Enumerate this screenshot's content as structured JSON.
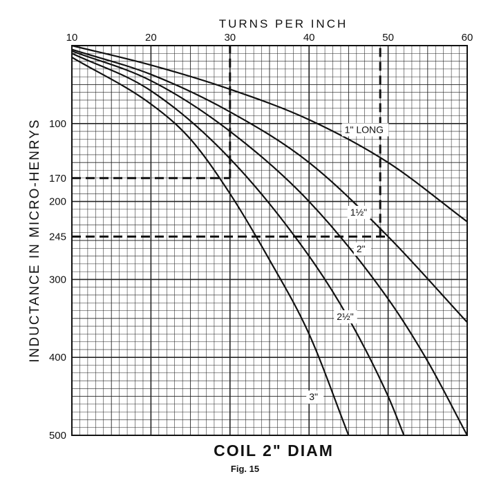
{
  "caption": "Fig. 15",
  "chart_data": {
    "type": "line",
    "title": "COIL 2\" DIAM",
    "xlabel": "TURNS  PER INCH",
    "ylabel": "INDUCTANCE  IN  MICRO-HENRYS",
    "xlim": [
      10,
      60
    ],
    "ylim": [
      0,
      500
    ],
    "y_inverted": true,
    "x_axis_position": "top",
    "grid": true,
    "x_ticks": [
      10,
      20,
      30,
      40,
      50,
      60
    ],
    "y_ticks": [
      100,
      200,
      300,
      400,
      500
    ],
    "y_marked_values": [
      170,
      245
    ],
    "series": [
      {
        "name": "1\" LONG",
        "x": [
          10,
          20,
          30,
          40,
          50,
          60
        ],
        "y": [
          0,
          25,
          56,
          95,
          150,
          226
        ]
      },
      {
        "name": "1½\"",
        "x": [
          10,
          20,
          30,
          40,
          50,
          60
        ],
        "y": [
          5,
          37,
          85,
          150,
          245,
          355
        ]
      },
      {
        "name": "2\"",
        "x": [
          10,
          20,
          30,
          40,
          50,
          55,
          60
        ],
        "y": [
          7,
          45,
          110,
          200,
          325,
          405,
          500
        ]
      },
      {
        "name": "2½\"",
        "x": [
          10,
          20,
          30,
          40,
          45,
          50,
          52
        ],
        "y": [
          10,
          58,
          145,
          270,
          350,
          450,
          500
        ]
      },
      {
        "name": "3\"",
        "x": [
          10,
          20,
          25,
          30,
          35,
          40,
          45
        ],
        "y": [
          15,
          75,
          120,
          190,
          275,
          370,
          500
        ]
      }
    ],
    "annotations": [
      {
        "from": [
          10,
          170
        ],
        "to": [
          30,
          170
        ],
        "style": "dashed"
      },
      {
        "from": [
          30,
          170
        ],
        "to": [
          30,
          0
        ],
        "style": "dashed"
      },
      {
        "from": [
          10,
          245
        ],
        "to": [
          50,
          245
        ],
        "style": "dashed"
      },
      {
        "from": [
          49,
          245
        ],
        "to": [
          49,
          0
        ],
        "style": "dashed"
      }
    ],
    "series_labels": [
      {
        "series": 0,
        "text": "1\" LONG",
        "x": 44.5,
        "y": 112
      },
      {
        "series": 1,
        "text": "1½\"",
        "x": 45.2,
        "y": 218
      },
      {
        "series": 2,
        "text": "2\"",
        "x": 46,
        "y": 265
      },
      {
        "series": 3,
        "text": "2½\"",
        "x": 43.5,
        "y": 352
      },
      {
        "series": 4,
        "text": "3\"",
        "x": 40,
        "y": 455
      }
    ]
  }
}
